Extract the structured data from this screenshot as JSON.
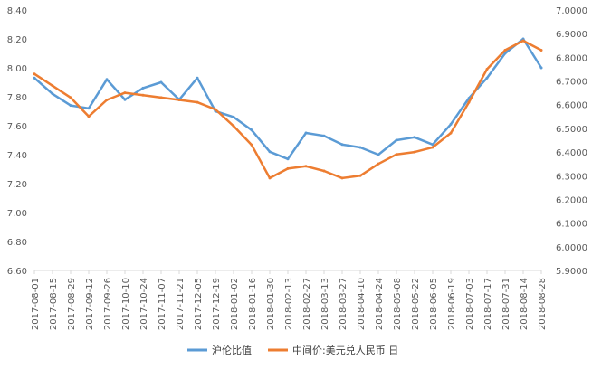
{
  "chart_data": {
    "type": "line",
    "title": "",
    "xlabel": "",
    "ylabel": "",
    "grid": false,
    "legend_position": "bottom",
    "x": [
      "2017-08-01",
      "2017-08-15",
      "2017-08-29",
      "2017-09-12",
      "2017-09-26",
      "2017-10-10",
      "2017-10-24",
      "2017-11-07",
      "2017-11-21",
      "2017-12-05",
      "2017-12-19",
      "2018-01-02",
      "2018-01-16",
      "2018-01-30",
      "2018-02-13",
      "2018-02-27",
      "2018-03-13",
      "2018-03-27",
      "2018-04-10",
      "2018-04-24",
      "2018-05-08",
      "2018-05-22",
      "2018-06-05",
      "2018-06-19",
      "2018-07-03",
      "2018-07-17",
      "2018-07-31",
      "2018-08-14",
      "2018-08-28"
    ],
    "y_left": {
      "ylim": [
        6.6,
        8.4
      ],
      "ticks": [
        "6.60",
        "6.80",
        "7.00",
        "7.20",
        "7.40",
        "7.60",
        "7.80",
        "8.00",
        "8.20",
        "8.40"
      ]
    },
    "y_right": {
      "ylim": [
        5.9,
        7.0
      ],
      "ticks": [
        "5.9000",
        "6.0000",
        "6.1000",
        "6.2000",
        "6.3000",
        "6.4000",
        "6.5000",
        "6.6000",
        "6.7000",
        "6.8000",
        "6.9000",
        "7.0000"
      ]
    },
    "series": [
      {
        "name": "沪伦比值",
        "axis": "left",
        "color": "#5b9bd5",
        "values": [
          7.93,
          7.82,
          7.74,
          7.72,
          7.92,
          7.78,
          7.86,
          7.9,
          7.78,
          7.93,
          7.7,
          7.66,
          7.57,
          7.42,
          7.37,
          7.55,
          7.53,
          7.47,
          7.45,
          7.4,
          7.5,
          7.52,
          7.47,
          7.61,
          7.79,
          7.93,
          8.1,
          8.2,
          8.0
        ]
      },
      {
        "name": "中间价:美元兑人民币 日",
        "axis": "right",
        "color": "#ed7d31",
        "values": [
          6.73,
          6.68,
          6.63,
          6.55,
          6.62,
          6.65,
          6.64,
          6.63,
          6.62,
          6.61,
          6.58,
          6.51,
          6.43,
          6.29,
          6.33,
          6.34,
          6.32,
          6.29,
          6.3,
          6.35,
          6.39,
          6.4,
          6.42,
          6.48,
          6.61,
          6.75,
          6.83,
          6.87,
          6.83
        ]
      }
    ]
  }
}
